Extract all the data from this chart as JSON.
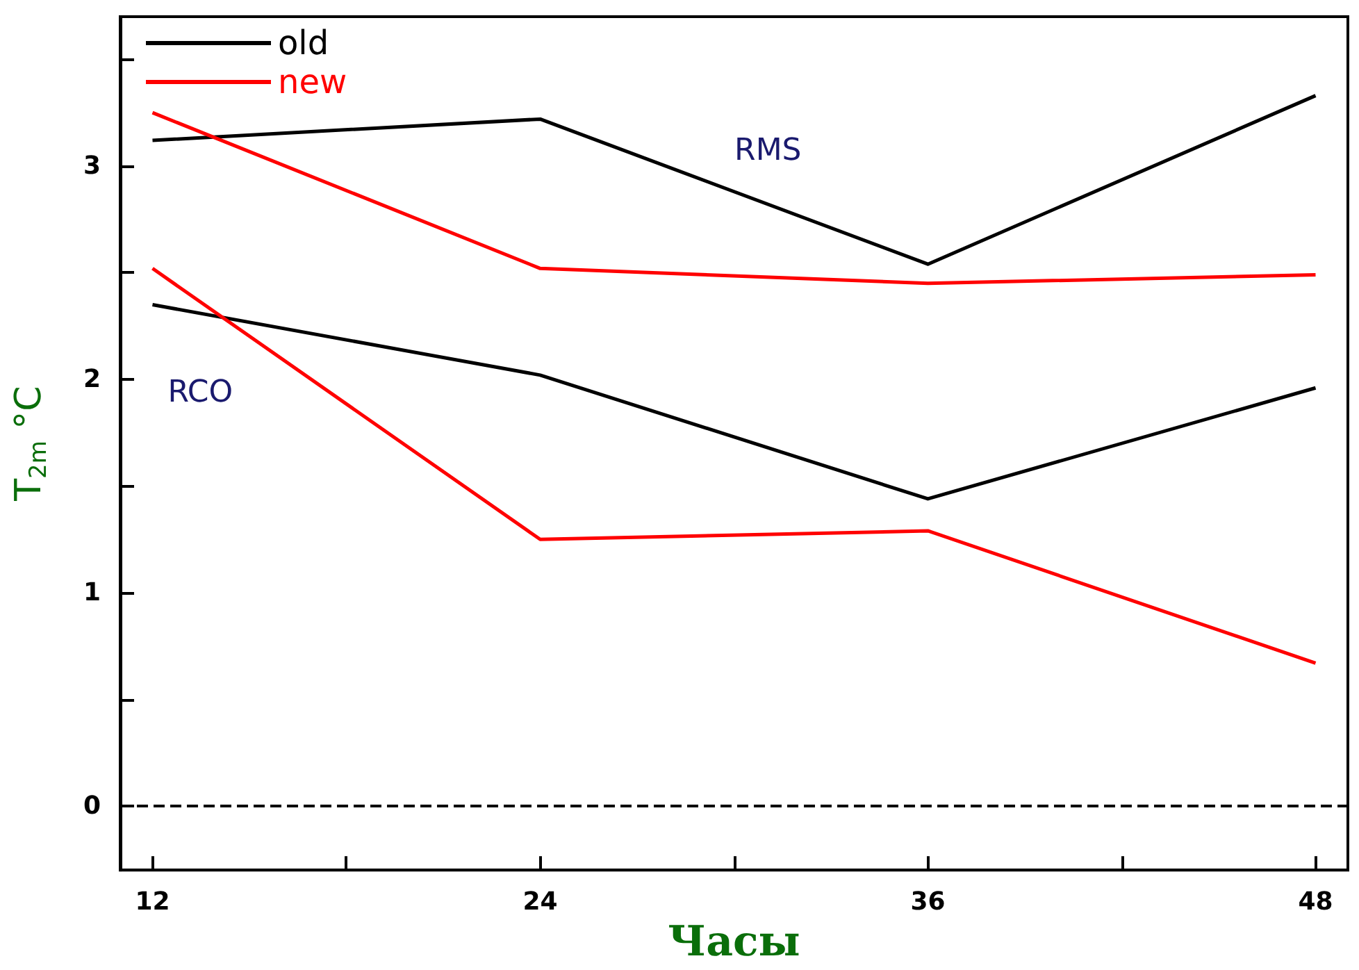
{
  "chart_data": {
    "type": "line",
    "xlabel": "Часы",
    "ylabel": "T$_{2m}$ °C",
    "x": [
      12,
      24,
      36,
      48
    ],
    "series": [
      {
        "name": "old",
        "color": "#000000",
        "values": [
          3.12,
          3.22,
          2.54,
          3.33
        ]
      },
      {
        "name": "new",
        "color": "#ff0000",
        "values": [
          3.25,
          2.52,
          2.45,
          2.49
        ]
      },
      {
        "color": "#000000",
        "values": [
          2.35,
          2.02,
          1.44,
          1.96
        ]
      },
      {
        "color": "#ff0000",
        "values": [
          2.52,
          1.25,
          1.29,
          0.67
        ]
      }
    ],
    "xlim": [
      11,
      49
    ],
    "xticks": [
      12,
      {
        "value": 18,
        "label": null
      },
      24,
      {
        "value": 30,
        "label": null
      },
      36,
      {
        "value": 42,
        "label": null
      },
      48
    ],
    "ylim": [
      -0.3,
      3.7
    ],
    "yticks": [
      0,
      {
        "value": 0.5,
        "label": null
      },
      1,
      {
        "value": 1.5,
        "label": null
      },
      2,
      {
        "value": 2.5,
        "label": null
      },
      3,
      {
        "value": 3.5,
        "label": null
      }
    ],
    "ref_lines": [
      {
        "axis": "y",
        "value": 0,
        "color": "#000000",
        "line_style": "dashed"
      }
    ],
    "annotations": [
      "RMS",
      "RCO"
    ],
    "legend": "top left",
    "grid": false,
    "marker": "none",
    "line_style": "solid"
  }
}
